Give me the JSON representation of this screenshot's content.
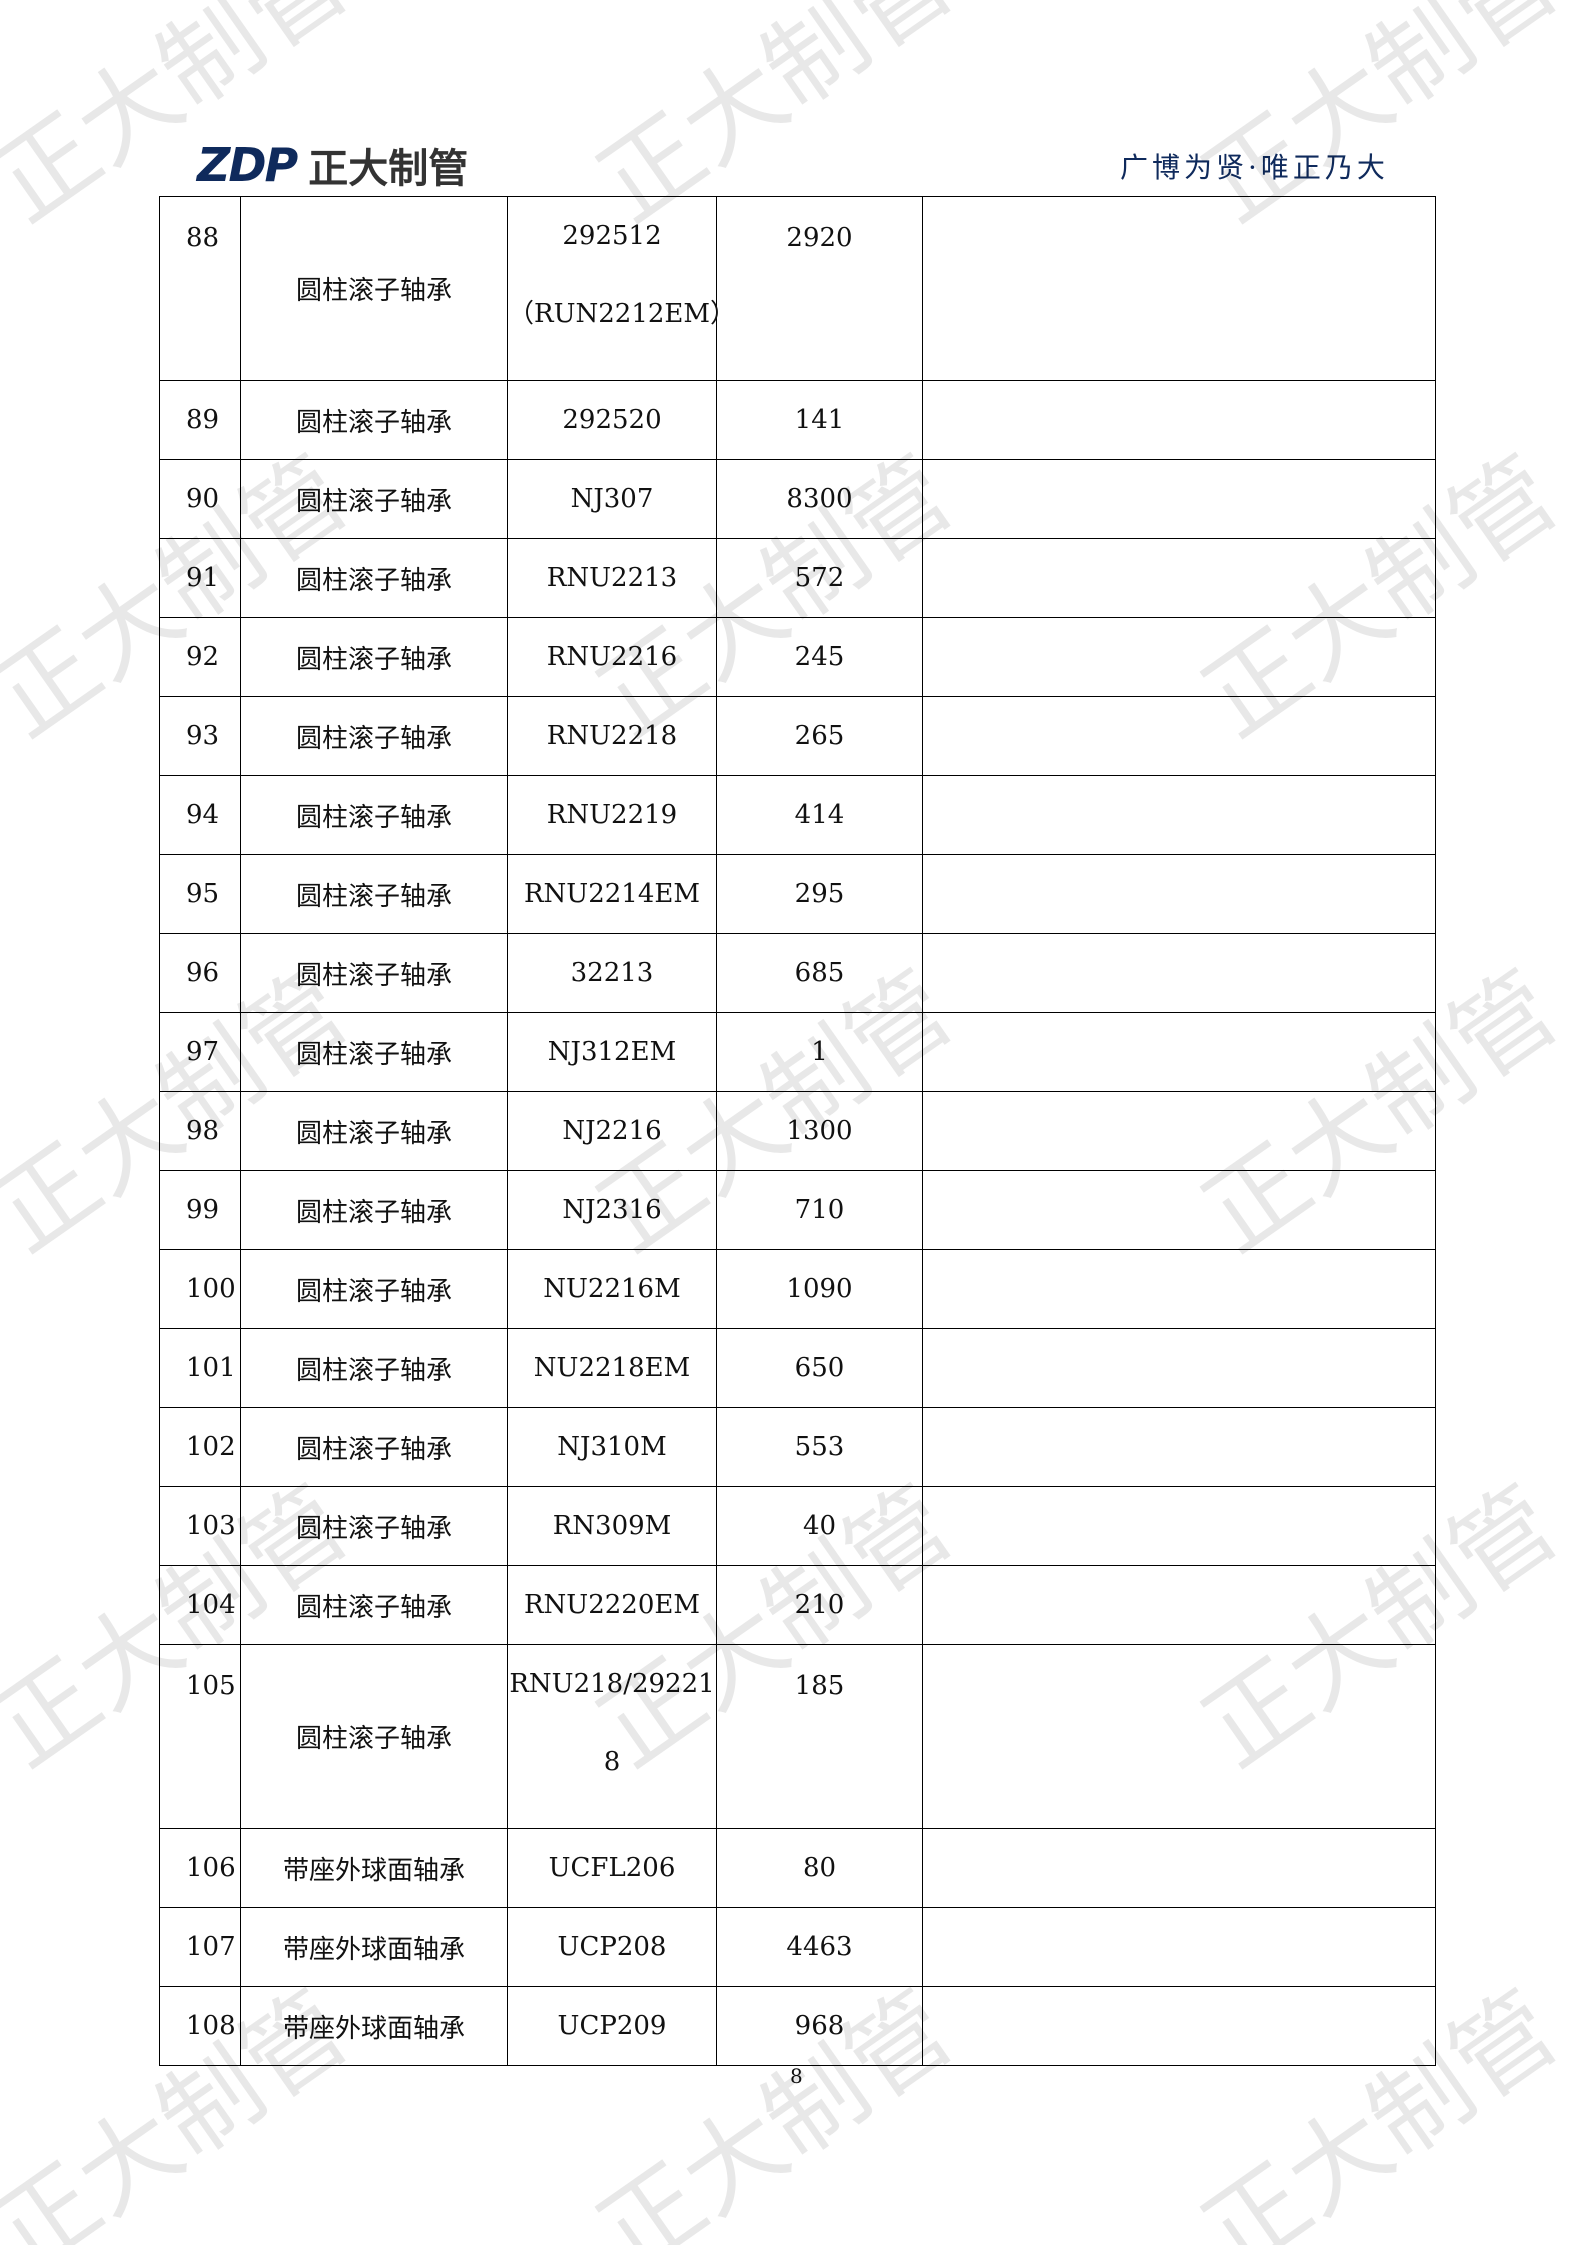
{
  "header": {
    "logo_mark": "ZDP",
    "logo_name": "正大制管",
    "slogan": "广博为贤·唯正乃大"
  },
  "watermark": "正大制管",
  "table": {
    "rows": [
      {
        "no": "88",
        "name": "圆柱滚子轴承",
        "model": "292512",
        "model_line2": "（RUN2212EM）",
        "qty": "2920",
        "note": ""
      },
      {
        "no": "89",
        "name": "圆柱滚子轴承",
        "model": "292520",
        "qty": "141",
        "note": ""
      },
      {
        "no": "90",
        "name": "圆柱滚子轴承",
        "model": "NJ307",
        "qty": "8300",
        "note": ""
      },
      {
        "no": "91",
        "name": "圆柱滚子轴承",
        "model": "RNU2213",
        "qty": "572",
        "note": ""
      },
      {
        "no": "92",
        "name": "圆柱滚子轴承",
        "model": "RNU2216",
        "qty": "245",
        "note": ""
      },
      {
        "no": "93",
        "name": "圆柱滚子轴承",
        "model": "RNU2218",
        "qty": "265",
        "note": ""
      },
      {
        "no": "94",
        "name": "圆柱滚子轴承",
        "model": "RNU2219",
        "qty": "414",
        "note": ""
      },
      {
        "no": "95",
        "name": "圆柱滚子轴承",
        "model": "RNU2214EM",
        "qty": "295",
        "note": ""
      },
      {
        "no": "96",
        "name": "圆柱滚子轴承",
        "model": "32213",
        "qty": "685",
        "note": ""
      },
      {
        "no": "97",
        "name": "圆柱滚子轴承",
        "model": "NJ312EM",
        "qty": "1",
        "note": ""
      },
      {
        "no": "98",
        "name": "圆柱滚子轴承",
        "model": "NJ2216",
        "qty": "1300",
        "note": ""
      },
      {
        "no": "99",
        "name": "圆柱滚子轴承",
        "model": "NJ2316",
        "qty": "710",
        "note": ""
      },
      {
        "no": "100",
        "name": "圆柱滚子轴承",
        "model": "NU2216M",
        "qty": "1090",
        "note": ""
      },
      {
        "no": "101",
        "name": "圆柱滚子轴承",
        "model": "NU2218EM",
        "qty": "650",
        "note": ""
      },
      {
        "no": "102",
        "name": "圆柱滚子轴承",
        "model": "NJ310M",
        "qty": "553",
        "note": ""
      },
      {
        "no": "103",
        "name": "圆柱滚子轴承",
        "model": "RN309M",
        "qty": "40",
        "note": ""
      },
      {
        "no": "104",
        "name": "圆柱滚子轴承",
        "model": "RNU2220EM",
        "qty": "210",
        "note": ""
      },
      {
        "no": "105",
        "name": "圆柱滚子轴承",
        "model": "RNU218/29221",
        "model_line2": "8",
        "qty": "185",
        "note": ""
      },
      {
        "no": "106",
        "name": "带座外球面轴承",
        "model": "UCFL206",
        "qty": "80",
        "note": ""
      },
      {
        "no": "107",
        "name": "带座外球面轴承",
        "model": "UCP208",
        "qty": "4463",
        "note": ""
      },
      {
        "no": "108",
        "name": "带座外球面轴承",
        "model": "UCP209",
        "qty": "968",
        "note": ""
      }
    ]
  },
  "footer": {
    "page_number": "8"
  }
}
